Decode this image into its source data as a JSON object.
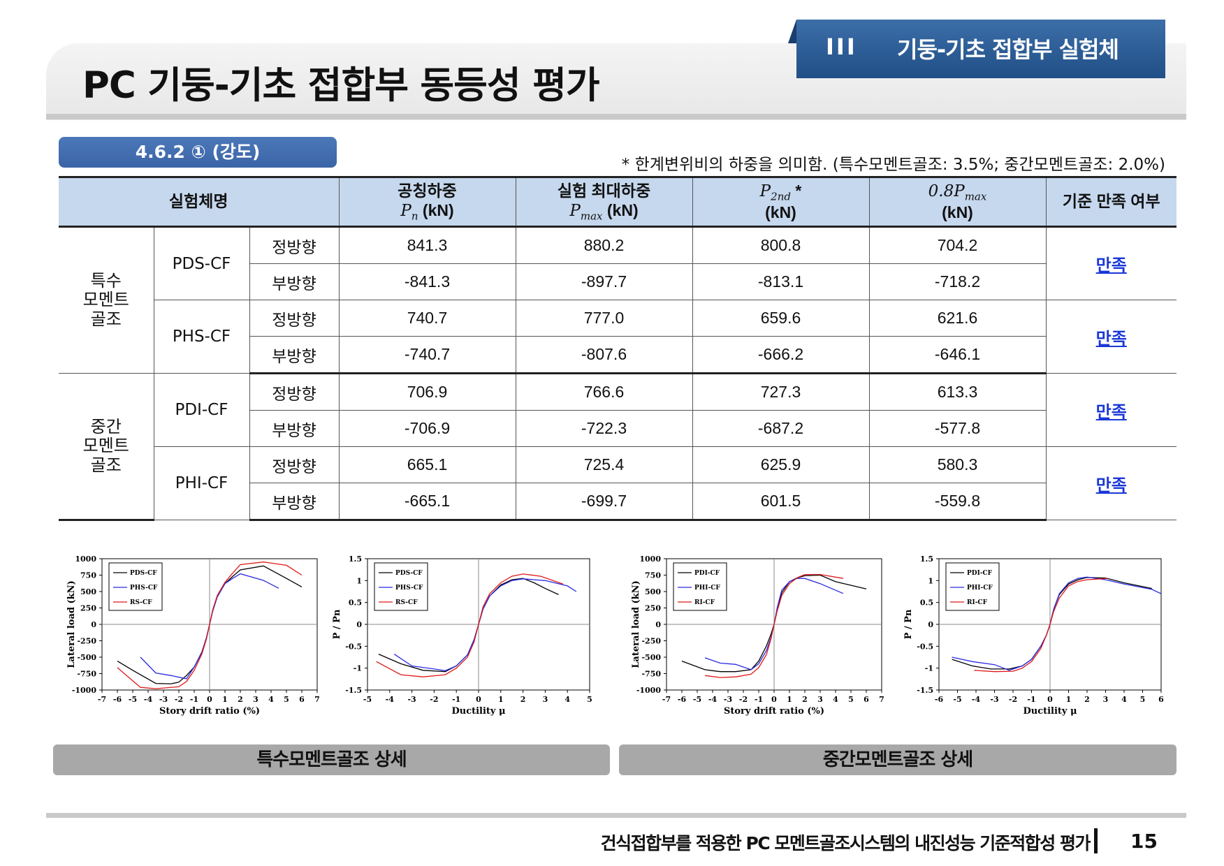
{
  "header": {
    "title": "PC 기둥-기초 접합부 동등성 평가",
    "section_number": "III",
    "section_name": "기둥-기초 접합부 실험체"
  },
  "subsection": "4.6.2 ① (강도)",
  "note": "* 한계변위비의 하중을 의미함. (특수모멘트골조: 3.5%; 중간모멘트골조: 2.0%)",
  "table": {
    "headers": {
      "specimen": "실험체명",
      "nominal_top": "공칭하중",
      "nominal_sym": "P",
      "nominal_sub": "n",
      "nominal_unit": "(kN)",
      "max_top": "실험 최대하중",
      "max_sym": "P",
      "max_sub": "max",
      "max_unit": "(kN)",
      "p2nd_sym": "P",
      "p2nd_sub": "2nd",
      "p2nd_star": "*",
      "p2nd_unit": "(kN)",
      "p08_sym": "0.8P",
      "p08_sub": "max",
      "p08_unit": "(kN)",
      "criteria": "기준 만족 여부"
    },
    "groups": [
      {
        "system": "특수\n모멘트\n골조",
        "specimens": [
          {
            "name": "PDS-CF",
            "result": "만족",
            "rows": [
              {
                "dir": "정방향",
                "pn": "841.3",
                "pmax": "880.2",
                "p2nd": "800.8",
                "p08": "704.2"
              },
              {
                "dir": "부방향",
                "pn": "-841.3",
                "pmax": "-897.7",
                "p2nd": "-813.1",
                "p08": "-718.2"
              }
            ]
          },
          {
            "name": "PHS-CF",
            "result": "만족",
            "rows": [
              {
                "dir": "정방향",
                "pn": "740.7",
                "pmax": "777.0",
                "p2nd": "659.6",
                "p08": "621.6"
              },
              {
                "dir": "부방향",
                "pn": "-740.7",
                "pmax": "-807.6",
                "p2nd": "-666.2",
                "p08": "-646.1"
              }
            ]
          }
        ]
      },
      {
        "system": "중간\n모멘트\n골조",
        "specimens": [
          {
            "name": "PDI-CF",
            "result": "만족",
            "rows": [
              {
                "dir": "정방향",
                "pn": "706.9",
                "pmax": "766.6",
                "p2nd": "727.3",
                "p08": "613.3"
              },
              {
                "dir": "부방향",
                "pn": "-706.9",
                "pmax": "-722.3",
                "p2nd": "-687.2",
                "p08": "-577.8"
              }
            ]
          },
          {
            "name": "PHI-CF",
            "result": "만족",
            "rows": [
              {
                "dir": "정방향",
                "pn": "665.1",
                "pmax": "725.4",
                "p2nd": "625.9",
                "p08": "580.3"
              },
              {
                "dir": "부방향",
                "pn": "-665.1",
                "pmax": "-699.7",
                "p2nd": "601.5",
                "p08": "-559.8"
              }
            ]
          }
        ]
      }
    ]
  },
  "captions": {
    "left": "특수모멘트골조 상세",
    "right": "중간모멘트골조 상세"
  },
  "footer": {
    "text": "건식접합부를 적용한 PC 모멘트골조시스템의 내진성능 기준적합성 평가",
    "page": "15"
  },
  "colors": {
    "tab": "#214f87",
    "badge": "#3a64a6",
    "table_header": "#c6d8ee",
    "satisfied_link": "#1a37d8",
    "caption_bar": "#a8a8a8",
    "series_black": "#000000",
    "series_blue": "#2a2ae0",
    "series_red": "#e01818"
  },
  "chart_data": [
    {
      "type": "line",
      "xlabel": "Story drift ratio (%)",
      "ylabel": "Lateral load (kN)",
      "xlim": [
        -7,
        7
      ],
      "ylim": [
        -1000,
        1000
      ],
      "xticks": [
        "-7",
        "-6",
        "-5",
        "-4",
        "-3",
        "-2",
        "-1",
        "0",
        "1",
        "2",
        "3",
        "4",
        "5",
        "6",
        "7"
      ],
      "yticks": [
        "1000",
        "750",
        "500",
        "250",
        "0",
        "-250",
        "-500",
        "-750",
        "-1000"
      ],
      "legend_position": "top-left",
      "series": [
        {
          "name": "PDS-CF",
          "color": "#000000",
          "x": [
            -6,
            -5,
            -3.5,
            -2.5,
            -2,
            -1.5,
            -1,
            -0.5,
            -0.2,
            0,
            0.2,
            0.5,
            1,
            1.5,
            2,
            3.5,
            5,
            6
          ],
          "y": [
            -560,
            -700,
            -900,
            -905,
            -880,
            -780,
            -650,
            -420,
            -200,
            0,
            200,
            420,
            620,
            730,
            830,
            890,
            700,
            570
          ]
        },
        {
          "name": "PHS-CF",
          "color": "#2a2ae0",
          "x": [
            -4.5,
            -3.5,
            -2.5,
            -1.5,
            -1,
            -0.5,
            -0.2,
            0,
            0.2,
            0.5,
            1,
            1.5,
            2,
            3.5,
            4.5
          ],
          "y": [
            -500,
            -740,
            -780,
            -830,
            -650,
            -430,
            -200,
            0,
            200,
            420,
            620,
            700,
            770,
            670,
            550
          ]
        },
        {
          "name": "RS-CF",
          "color": "#e01818",
          "x": [
            -6,
            -4.5,
            -3.5,
            -2,
            -1.5,
            -1,
            -0.5,
            -0.2,
            0,
            0.2,
            0.5,
            1,
            1.5,
            2,
            3.5,
            5,
            6
          ],
          "y": [
            -660,
            -960,
            -980,
            -950,
            -870,
            -700,
            -450,
            -220,
            0,
            220,
            440,
            640,
            780,
            910,
            950,
            900,
            750
          ]
        }
      ]
    },
    {
      "type": "line",
      "xlabel": "Ductility μ",
      "ylabel": "P / Pn",
      "xlim": [
        -5,
        5
      ],
      "ylim": [
        -1.5,
        1.5
      ],
      "xticks": [
        "-5",
        "-4",
        "-3",
        "-2",
        "-1",
        "0",
        "1",
        "2",
        "3",
        "4",
        "5"
      ],
      "yticks": [
        "1.5",
        "1",
        "0.5",
        "0",
        "-0.5",
        "-1",
        "-1.5"
      ],
      "legend_position": "top-left",
      "series": [
        {
          "name": "PDS-CF",
          "color": "#000000",
          "x": [
            -4.5,
            -3.5,
            -2.5,
            -1.5,
            -1,
            -0.5,
            -0.2,
            0,
            0.2,
            0.5,
            1,
            1.5,
            2,
            2.5,
            3,
            3.6
          ],
          "y": [
            -0.68,
            -0.9,
            -1.05,
            -1.08,
            -0.95,
            -0.7,
            -0.35,
            0,
            0.35,
            0.65,
            0.9,
            1.02,
            1.05,
            0.95,
            0.82,
            0.68
          ]
        },
        {
          "name": "PHS-CF",
          "color": "#2a2ae0",
          "x": [
            -3.8,
            -3,
            -2,
            -1.5,
            -1,
            -0.5,
            -0.2,
            0,
            0.2,
            0.5,
            1,
            1.5,
            2,
            3,
            4,
            4.4
          ],
          "y": [
            -0.68,
            -0.95,
            -1.02,
            -1.06,
            -0.95,
            -0.7,
            -0.35,
            0,
            0.35,
            0.65,
            0.88,
            1.0,
            1.04,
            1.0,
            0.88,
            0.75
          ]
        },
        {
          "name": "RS-CF",
          "color": "#e01818",
          "x": [
            -4.6,
            -3.5,
            -2.5,
            -1.5,
            -1,
            -0.5,
            -0.2,
            0,
            0.2,
            0.5,
            1,
            1.5,
            2,
            2.8,
            3.8
          ],
          "y": [
            -0.85,
            -1.15,
            -1.2,
            -1.15,
            -1.0,
            -0.75,
            -0.4,
            0,
            0.4,
            0.7,
            0.95,
            1.1,
            1.15,
            1.1,
            0.92
          ]
        }
      ]
    },
    {
      "type": "line",
      "xlabel": "Story drift ratio (%)",
      "ylabel": "Lateral load (kN)",
      "xlim": [
        -7,
        7
      ],
      "ylim": [
        -1000,
        1000
      ],
      "xticks": [
        "-7",
        "-6",
        "-5",
        "-4",
        "-3",
        "-2",
        "-1",
        "0",
        "1",
        "2",
        "3",
        "4",
        "5",
        "6",
        "7"
      ],
      "yticks": [
        "1000",
        "750",
        "500",
        "250",
        "0",
        "-250",
        "-500",
        "-750",
        "-1000"
      ],
      "legend_position": "top-left",
      "series": [
        {
          "name": "PDI-CF",
          "color": "#000000",
          "x": [
            -6,
            -4.5,
            -3.5,
            -2.5,
            -1.5,
            -1,
            -0.5,
            -0.2,
            0,
            0.2,
            0.5,
            1,
            1.5,
            2,
            3,
            4,
            6
          ],
          "y": [
            -560,
            -690,
            -720,
            -720,
            -690,
            -560,
            -330,
            -150,
            0,
            220,
            480,
            650,
            710,
            740,
            750,
            650,
            540
          ]
        },
        {
          "name": "PHI-CF",
          "color": "#2a2ae0",
          "x": [
            -4.5,
            -3.5,
            -2.5,
            -1.5,
            -1,
            -0.5,
            -0.2,
            0,
            0.2,
            0.5,
            1,
            1.5,
            2,
            3,
            4.5
          ],
          "y": [
            -510,
            -590,
            -610,
            -690,
            -600,
            -400,
            -200,
            0,
            250,
            520,
            650,
            700,
            700,
            620,
            470
          ]
        },
        {
          "name": "RI-CF",
          "color": "#e01818",
          "x": [
            -4.5,
            -3.5,
            -2.5,
            -1.5,
            -1,
            -0.5,
            -0.2,
            0,
            0.2,
            0.5,
            1,
            1.5,
            2,
            3,
            4.5
          ],
          "y": [
            -780,
            -810,
            -800,
            -760,
            -660,
            -460,
            -220,
            0,
            200,
            440,
            620,
            710,
            760,
            760,
            700
          ]
        }
      ]
    },
    {
      "type": "line",
      "xlabel": "Ductility μ",
      "ylabel": "P / Pn",
      "xlim": [
        -6,
        6
      ],
      "ylim": [
        -1.5,
        1.5
      ],
      "xticks": [
        "-6",
        "-5",
        "-4",
        "-3",
        "-2",
        "-1",
        "0",
        "1",
        "2",
        "3",
        "4",
        "5",
        "6"
      ],
      "yticks": [
        "1.5",
        "1",
        "0.5",
        "0",
        "-0.5",
        "-1",
        "-1.5"
      ],
      "legend_position": "top-left",
      "series": [
        {
          "name": "PDI-CF",
          "color": "#000000",
          "x": [
            -5.3,
            -4.2,
            -3.2,
            -2.2,
            -1.5,
            -1,
            -0.5,
            -0.2,
            0,
            0.2,
            0.5,
            1,
            1.5,
            2,
            3,
            4,
            5.5
          ],
          "y": [
            -0.8,
            -0.95,
            -1.02,
            -1.02,
            -0.95,
            -0.8,
            -0.5,
            -0.25,
            0,
            0.35,
            0.68,
            0.92,
            1.02,
            1.07,
            1.06,
            0.95,
            0.82
          ]
        },
        {
          "name": "PHI-CF",
          "color": "#2a2ae0",
          "x": [
            -5.3,
            -4.2,
            -3,
            -2.2,
            -1.5,
            -1,
            -0.5,
            -0.2,
            0,
            0.2,
            0.5,
            1,
            1.5,
            2,
            3,
            4,
            5.5,
            6
          ],
          "y": [
            -0.75,
            -0.85,
            -0.92,
            -1.05,
            -0.95,
            -0.8,
            -0.5,
            -0.25,
            0,
            0.35,
            0.7,
            0.95,
            1.05,
            1.08,
            1.02,
            0.92,
            0.8,
            0.7
          ]
        },
        {
          "name": "RI-CF",
          "color": "#e01818",
          "x": [
            -4.1,
            -3,
            -2,
            -1.5,
            -1,
            -0.5,
            -0.2,
            0,
            0.2,
            0.5,
            1,
            1.5,
            2,
            3.1
          ],
          "y": [
            -1.05,
            -1.08,
            -1.07,
            -1.0,
            -0.85,
            -0.55,
            -0.25,
            0,
            0.3,
            0.6,
            0.88,
            0.98,
            1.02,
            1.05
          ]
        }
      ]
    }
  ]
}
